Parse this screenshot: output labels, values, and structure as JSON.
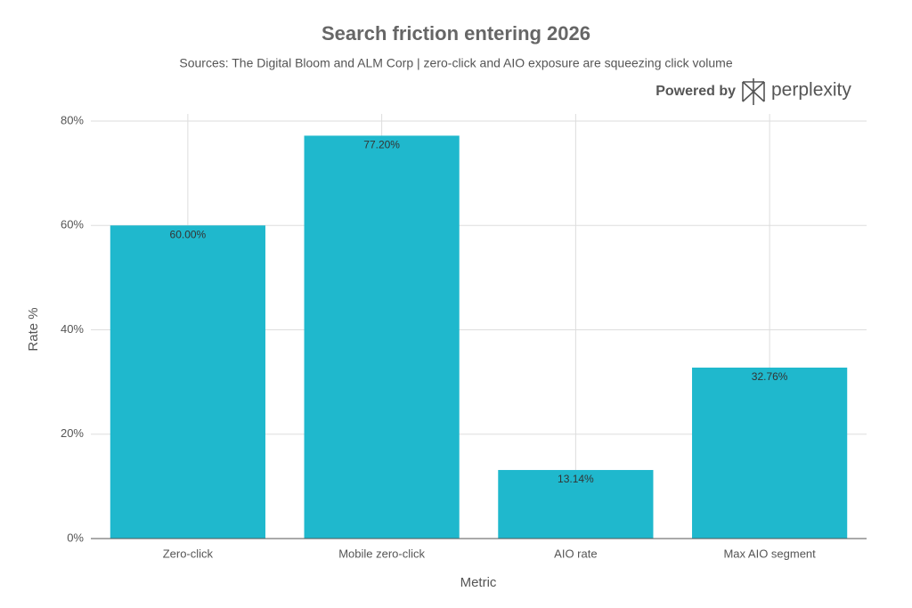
{
  "chart_data": {
    "type": "bar",
    "title": "Search friction entering 2026",
    "subtitle": "Sources: The Digital Bloom and ALM Corp | zero-click and AIO exposure are squeezing click volume",
    "x_label": "Metric",
    "y_label": "Rate %",
    "categories": [
      "Zero-click",
      "Mobile zero-click",
      "AIO rate",
      "Max AIO segment"
    ],
    "values": [
      60,
      77.2,
      13.14,
      32.76
    ],
    "value_labels": [
      "60.00%",
      "77.20%",
      "13.14%",
      "32.76%"
    ],
    "color": "#1fb8cd",
    "ylim": [
      0,
      80
    ],
    "yticks": [
      {
        "value": 0,
        "label": "0%"
      },
      {
        "value": 20,
        "label": "20%"
      },
      {
        "value": 40,
        "label": "40%"
      },
      {
        "value": 60,
        "label": "60%"
      },
      {
        "value": 80,
        "label": "80%"
      }
    ],
    "grid": true
  },
  "branding": {
    "prefix": "Powered by",
    "name": "perplexity"
  }
}
